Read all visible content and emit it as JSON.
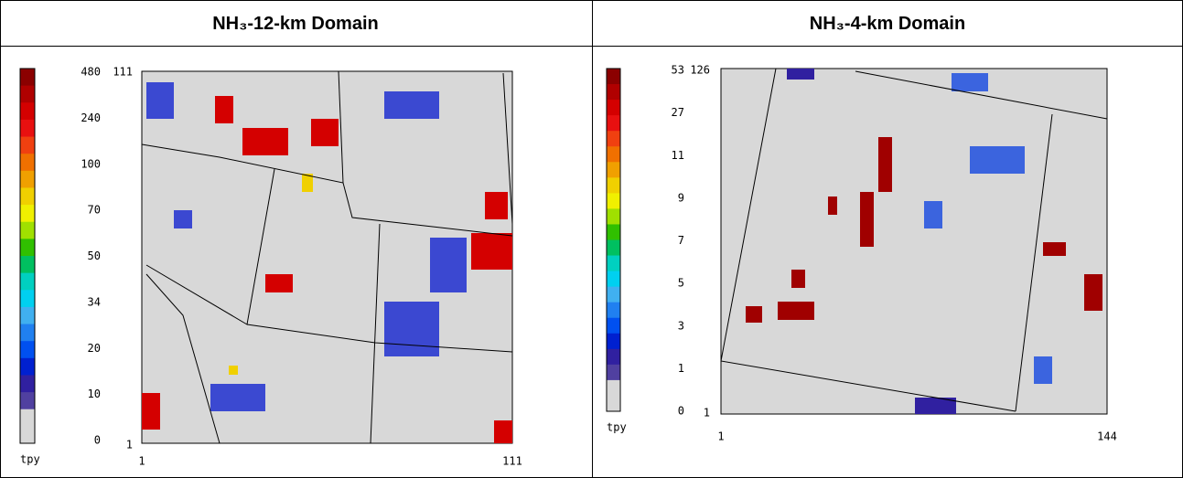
{
  "table": {
    "columns": [
      {
        "title": "NH₃-12-km Domain",
        "colorbar": {
          "labels": [
            "480",
            "240",
            "100",
            "70",
            "50",
            "34",
            "20",
            "10",
            "0"
          ],
          "unit": "tpy",
          "colors": [
            "#8b0000",
            "#b00000",
            "#d40000",
            "#e81010",
            "#f04010",
            "#f07000",
            "#f0a000",
            "#f0d000",
            "#f0f000",
            "#a0e000",
            "#30c000",
            "#00c060",
            "#00d0c0",
            "#00d0f0",
            "#40b0f0",
            "#2080f0",
            "#0050f0",
            "#0020d0",
            "#3020a0",
            "#5040a0",
            "#d8d8d8"
          ]
        },
        "axes": {
          "y_top": "111",
          "y_bottom": "1",
          "x_left": "1",
          "x_right": "111"
        }
      },
      {
        "title": "NH₃-4-km Domain",
        "colorbar": {
          "labels": [
            "53",
            "27",
            "11",
            "9",
            "7",
            "5",
            "3",
            "1",
            "0"
          ],
          "unit": "tpy",
          "colors": [
            "#8b0000",
            "#b00000",
            "#d40000",
            "#e81010",
            "#f04010",
            "#f07000",
            "#f0a000",
            "#f0d000",
            "#f0f000",
            "#a0e000",
            "#30c000",
            "#00c060",
            "#00d0c0",
            "#00d0f0",
            "#40b0f0",
            "#2080f0",
            "#0050f0",
            "#0020d0",
            "#3020a0",
            "#5040a0",
            "#d8d8d8"
          ]
        },
        "axes": {
          "y_top": "126",
          "y_bottom": "1",
          "x_left": "1",
          "x_right": "144"
        }
      }
    ]
  }
}
